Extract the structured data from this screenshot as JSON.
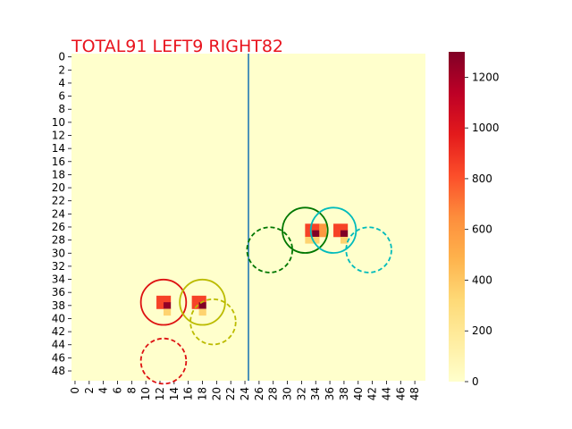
{
  "chart_data": {
    "type": "heatmap",
    "title": "TOTAL91  LEFT9 RIGHT82",
    "xlabel": "",
    "ylabel": "",
    "grid_size": [
      50,
      50
    ],
    "x_tick_labels": [
      "0",
      "2",
      "4",
      "6",
      "8",
      "10",
      "12",
      "14",
      "16",
      "18",
      "20",
      "22",
      "24",
      "26",
      "28",
      "30",
      "32",
      "34",
      "36",
      "38",
      "40",
      "42",
      "44",
      "46",
      "48"
    ],
    "y_tick_labels": [
      "0",
      "2",
      "4",
      "6",
      "8",
      "10",
      "12",
      "14",
      "16",
      "18",
      "20",
      "22",
      "24",
      "26",
      "28",
      "30",
      "32",
      "34",
      "36",
      "38",
      "40",
      "42",
      "44",
      "46",
      "48"
    ],
    "colorbar": {
      "range": [
        0,
        1300
      ],
      "tick_labels": [
        "0",
        "200",
        "400",
        "600",
        "800",
        "1000",
        "1200"
      ],
      "tick_values": [
        0,
        200,
        400,
        600,
        800,
        1000,
        1200
      ],
      "colormap": "YlOrRd"
    },
    "background_value": 0,
    "cells": [
      {
        "x": 12,
        "y": 37,
        "value": 850
      },
      {
        "x": 13,
        "y": 37,
        "value": 850
      },
      {
        "x": 12,
        "y": 38,
        "value": 850
      },
      {
        "x": 13,
        "y": 38,
        "value": 1250
      },
      {
        "x": 13,
        "y": 39,
        "value": 350
      },
      {
        "x": 17,
        "y": 37,
        "value": 850
      },
      {
        "x": 18,
        "y": 37,
        "value": 850
      },
      {
        "x": 17,
        "y": 38,
        "value": 850
      },
      {
        "x": 18,
        "y": 38,
        "value": 1300
      },
      {
        "x": 18,
        "y": 39,
        "value": 350
      },
      {
        "x": 34,
        "y": 26,
        "value": 850
      },
      {
        "x": 33,
        "y": 26,
        "value": 850
      },
      {
        "x": 33,
        "y": 27,
        "value": 850
      },
      {
        "x": 34,
        "y": 27,
        "value": 1300
      },
      {
        "x": 35,
        "y": 27,
        "value": 600
      },
      {
        "x": 35,
        "y": 26,
        "value": 600
      },
      {
        "x": 34,
        "y": 28,
        "value": 350
      },
      {
        "x": 33,
        "y": 28,
        "value": 350
      },
      {
        "x": 37,
        "y": 26,
        "value": 850
      },
      {
        "x": 38,
        "y": 26,
        "value": 850
      },
      {
        "x": 37,
        "y": 27,
        "value": 850
      },
      {
        "x": 38,
        "y": 27,
        "value": 1300
      },
      {
        "x": 38,
        "y": 28,
        "value": 350
      }
    ],
    "divider_x": 25,
    "divider_color": "#1f77b4",
    "circles": [
      {
        "cx": 13,
        "cy": 38,
        "r": 3.2,
        "color": "#dd1111",
        "style": "solid"
      },
      {
        "cx": 13,
        "cy": 47,
        "r": 3.2,
        "color": "#dd1111",
        "style": "dashed"
      },
      {
        "cx": 18.5,
        "cy": 38,
        "r": 3.2,
        "color": "#bbbb00",
        "style": "solid"
      },
      {
        "cx": 20,
        "cy": 41,
        "r": 3.2,
        "color": "#bbbb00",
        "style": "dashed"
      },
      {
        "cx": 33,
        "cy": 27,
        "r": 3.2,
        "color": "#007700",
        "style": "solid"
      },
      {
        "cx": 28,
        "cy": 30,
        "r": 3.2,
        "color": "#007700",
        "style": "dashed"
      },
      {
        "cx": 37,
        "cy": 27,
        "r": 3.2,
        "color": "#00bbbb",
        "style": "solid"
      },
      {
        "cx": 42,
        "cy": 30,
        "r": 3.2,
        "color": "#00bbbb",
        "style": "dashed"
      }
    ]
  }
}
